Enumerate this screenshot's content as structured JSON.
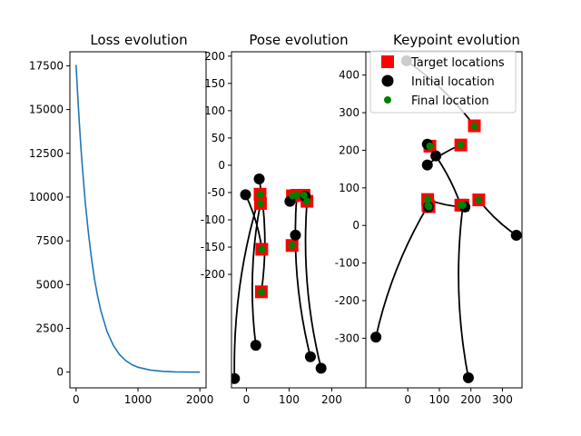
{
  "chart_data": [
    {
      "type": "line",
      "title": "Loss evolution",
      "xlim": [
        -100,
        2100
      ],
      "ylim": [
        -900,
        18300
      ],
      "xticks": [
        0,
        1000,
        2000
      ],
      "yticks": [
        0,
        2500,
        5000,
        7500,
        10000,
        12500,
        15000,
        17500
      ],
      "xtick_labels": [
        "0",
        "1000",
        "2000"
      ],
      "ytick_labels": [
        "0",
        "2500",
        "5000",
        "7500",
        "10000",
        "12500",
        "15000",
        "17500"
      ],
      "series": [
        {
          "color": "#1f77b4",
          "x": [
            0,
            25,
            50,
            75,
            100,
            150,
            200,
            250,
            300,
            350,
            400,
            500,
            600,
            700,
            800,
            900,
            1000,
            1200,
            1400,
            1600,
            1800,
            2000
          ],
          "y": [
            17550,
            15900,
            14400,
            13000,
            11800,
            9650,
            7900,
            6450,
            5250,
            4300,
            3500,
            2320,
            1540,
            1010,
            660,
            430,
            280,
            115,
            45,
            15,
            5,
            0
          ]
        }
      ],
      "grid": false
    },
    {
      "type": "scatter",
      "title": "Pose evolution",
      "xlim": [
        -35,
        280
      ],
      "ylim": [
        -408,
        208
      ],
      "xticks": [
        0,
        100,
        200
      ],
      "xtick_labels": [
        "0",
        "100",
        "200"
      ],
      "yticks": [
        -200,
        -150,
        -100,
        -50,
        0,
        50,
        100,
        150,
        200
      ],
      "ytick_labels": [
        "-200",
        "-150",
        "-100",
        "-50",
        "0",
        "50",
        "100",
        "150",
        "200"
      ],
      "grid": false,
      "markers": {
        "target": {
          "shape": "square",
          "color": "#ff0000"
        },
        "initial": {
          "shape": "circle",
          "color": "#000000"
        },
        "final": {
          "shape": "circle",
          "color": "#008000"
        }
      },
      "trajectories": [
        {
          "initial": [
            -28,
            -391
          ],
          "target": [
            32,
            -53
          ],
          "final": [
            32,
            -53
          ]
        },
        {
          "initial": [
            -2,
            -54
          ],
          "target": [
            36,
            -154
          ],
          "final": [
            36,
            -154
          ]
        },
        {
          "initial": [
            22,
            -330
          ],
          "target": [
            33,
            -70
          ],
          "final": [
            33,
            -70
          ]
        },
        {
          "initial": [
            30,
            -25
          ],
          "target": [
            35,
            -232
          ],
          "final": [
            35,
            -232
          ]
        },
        {
          "initial": [
            102,
            -66
          ],
          "target": [
            108,
            -56
          ],
          "final": [
            108,
            -56
          ]
        },
        {
          "initial": [
            115,
            -128
          ],
          "target": [
            107,
            -147
          ],
          "final": [
            107,
            -147
          ]
        },
        {
          "initial": [
            138,
            -57
          ],
          "target": [
            135,
            -55
          ],
          "final": [
            135,
            -55
          ]
        },
        {
          "initial": [
            150,
            -351
          ],
          "target": [
            118,
            -55
          ],
          "final": [
            118,
            -55
          ]
        },
        {
          "initial": [
            175,
            -372
          ],
          "target": [
            142,
            -66
          ],
          "final": [
            142,
            -66
          ]
        }
      ]
    },
    {
      "type": "scatter",
      "title": "Keypoint evolution",
      "xlim": [
        -133,
        362
      ],
      "ylim": [
        -432,
        462
      ],
      "xticks": [
        0,
        100,
        200,
        300
      ],
      "xtick_labels": [
        "0",
        "100",
        "200",
        "300"
      ],
      "yticks": [
        -300,
        -200,
        -100,
        0,
        100,
        200,
        300,
        400
      ],
      "ytick_labels": [
        "-300",
        "-200",
        "-100",
        "0",
        "100",
        "200",
        "300",
        "400"
      ],
      "grid": false,
      "legend": {
        "placement": "upper right",
        "entries": [
          {
            "label": "Target locations",
            "marker": "square",
            "color": "#ff0000"
          },
          {
            "label": "Initial location",
            "marker": "circle",
            "color": "#000000"
          },
          {
            "label": "Final location",
            "marker": "circle",
            "color": "#008000"
          }
        ]
      },
      "trajectories": [
        {
          "initial": [
            -4,
            438
          ],
          "target": [
            211,
            265
          ],
          "final": [
            211,
            265
          ]
        },
        {
          "initial": [
            -101,
            -297
          ],
          "target": [
            64,
            53
          ],
          "final": [
            64,
            53
          ]
        },
        {
          "initial": [
            62,
            216
          ],
          "target": [
            168,
            54
          ],
          "final": [
            168,
            54
          ]
        },
        {
          "initial": [
            62,
            161
          ],
          "target": [
            168,
            214
          ],
          "final": [
            168,
            214
          ]
        },
        {
          "initial": [
            89,
            185
          ],
          "target": [
            70,
            211
          ],
          "final": [
            70,
            211
          ]
        },
        {
          "initial": [
            344,
            -26
          ],
          "target": [
            225,
            68
          ],
          "final": [
            225,
            68
          ]
        },
        {
          "initial": [
            181,
            49
          ],
          "target": [
            63,
            69
          ],
          "final": [
            63,
            69
          ]
        },
        {
          "initial": [
            192,
            -405
          ],
          "target": [
            175,
            54
          ],
          "final": [
            175,
            54
          ]
        },
        {
          "initial": [
            65,
            49
          ],
          "target": [
            67,
            50
          ],
          "final": [
            67,
            50
          ]
        }
      ]
    }
  ]
}
